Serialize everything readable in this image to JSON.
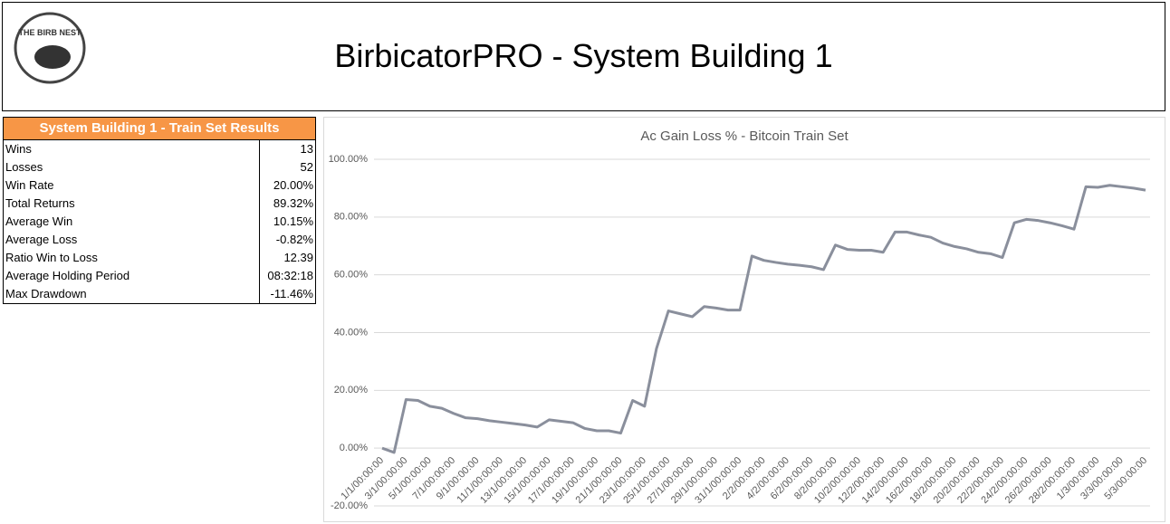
{
  "header": {
    "logo": "THE BIRB NEST",
    "title": "BirbicatorPRO - System Building 1"
  },
  "table": {
    "title": "System Building 1 - Train Set Results",
    "rows": [
      [
        "Wins",
        "13"
      ],
      [
        "Losses",
        "52"
      ],
      [
        "Win Rate",
        "20.00%"
      ],
      [
        "Total Returns",
        "89.32%"
      ],
      [
        "Average Win",
        "10.15%"
      ],
      [
        "Average Loss",
        "-0.82%"
      ],
      [
        "Ratio Win to Loss",
        "12.39"
      ],
      [
        "Average Holding Period",
        "08:32:18"
      ],
      [
        "Max Drawdown",
        "-11.46%"
      ]
    ]
  },
  "chart_data": {
    "type": "line",
    "title": "Ac Gain Loss % - Bitcoin Train Set",
    "color": "#8a8f9c",
    "grid": true,
    "categories": [
      "1/1/00:00:00",
      null,
      "3/1/00:00:00",
      null,
      "5/1/00:00:00",
      null,
      "7/1/00:00:00",
      null,
      "9/1/00:00:00",
      null,
      "11/1/00:00:00",
      null,
      "13/1/00:00:00",
      null,
      "15/1/00:00:00",
      null,
      "17/1/00:00:00",
      null,
      "19/1/00:00:00",
      null,
      "21/1/00:00:00",
      null,
      "23/1/00:00:00",
      null,
      "25/1/00:00:00",
      null,
      "27/1/00:00:00",
      null,
      "29/1/00:00:00",
      null,
      "31/1/00:00:00",
      null,
      "2/2/00:00:00",
      null,
      "4/2/00:00:00",
      null,
      "6/2/00:00:00",
      null,
      "8/2/00:00:00",
      null,
      "10/2/00:00:00",
      null,
      "12/2/00:00:00",
      null,
      "14/2/00:00:00",
      null,
      "16/2/00:00:00",
      null,
      "18/2/00:00:00",
      null,
      "20/2/00:00:00",
      null,
      "22/2/00:00:00",
      null,
      "24/2/00:00:00",
      null,
      "26/2/00:00:00",
      null,
      "28/2/00:00:00",
      null,
      "1/3/00:00:00",
      null,
      "3/3/00:00:00",
      null,
      "5/3/00:00:00"
    ],
    "values": [
      0,
      -1.5,
      16.8,
      16.5,
      14.5,
      13.8,
      12,
      10.5,
      10.2,
      9.5,
      9,
      8.5,
      8,
      7.3,
      9.8,
      9.3,
      8.8,
      6.8,
      6,
      6,
      5.2,
      16.5,
      14.5,
      34.5,
      47.5,
      46.5,
      45.5,
      49,
      48.5,
      47.8,
      47.8,
      66.5,
      65,
      64.3,
      63.7,
      63.3,
      62.8,
      61.8,
      70.3,
      68.8,
      68.5,
      68.5,
      67.8,
      74.8,
      74.8,
      73.8,
      73,
      71,
      69.8,
      69,
      67.8,
      67.3,
      66,
      78,
      79.2,
      78.8,
      78,
      77,
      75.8,
      90.5,
      90.3,
      91,
      90.5,
      90,
      89.32
    ],
    "ylim": [
      -20,
      100
    ],
    "yticks": [
      {
        "value": -20,
        "label": "-20.00%"
      },
      {
        "value": 0,
        "label": "0.00%"
      },
      {
        "value": 20,
        "label": "20.00%"
      },
      {
        "value": 40,
        "label": "40.00%"
      },
      {
        "value": 60,
        "label": "60.00%"
      },
      {
        "value": 80,
        "label": "80.00%"
      },
      {
        "value": 100,
        "label": "100.00%"
      }
    ]
  }
}
